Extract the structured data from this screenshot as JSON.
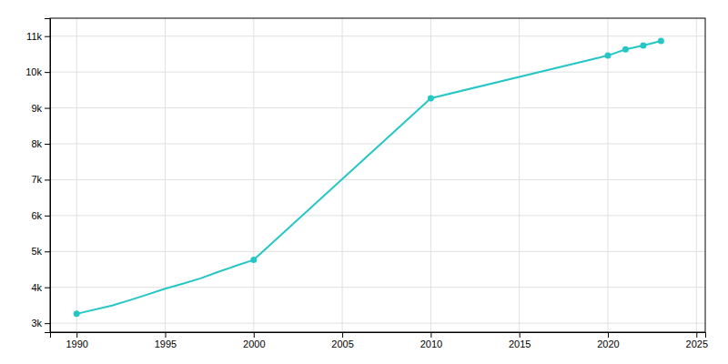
{
  "chart_data": {
    "type": "line",
    "x": [
      1990,
      1992,
      1993,
      1994,
      1995,
      1996,
      1997,
      1998,
      1999,
      2000,
      2010,
      2020,
      2021,
      2022,
      2023
    ],
    "series": [
      {
        "color": "#26c6c6",
        "values": [
          3261,
          3490,
          3640,
          3800,
          3960,
          4100,
          4250,
          4430,
          4600,
          4764,
          9269,
          10458,
          10630,
          10738,
          10868
        ]
      },
      {
        "type": "scatter",
        "marker": "circle",
        "color": "#26c6c6",
        "x": [
          1990,
          2000,
          2010,
          2020,
          2021,
          2022,
          2023
        ],
        "values": [
          3261,
          4764,
          9269,
          10458,
          10630,
          10738,
          10868
        ]
      }
    ],
    "xlim": [
      1988.5,
      2025.5
    ],
    "ylim": [
      2750,
      11500
    ],
    "xticks": [
      1990,
      1995,
      2000,
      2005,
      2010,
      2015,
      2020,
      2025
    ],
    "yticks": [
      {
        "value": 3000,
        "label": "3k"
      },
      {
        "value": 4000,
        "label": "4k"
      },
      {
        "value": 5000,
        "label": "5k"
      },
      {
        "value": 6000,
        "label": "6k"
      },
      {
        "value": 7000,
        "label": "7k"
      },
      {
        "value": 8000,
        "label": "8k"
      },
      {
        "value": 9000,
        "label": "9k"
      },
      {
        "value": 10000,
        "label": "10k"
      },
      {
        "value": 11000,
        "label": "11k"
      }
    ],
    "grid": true
  }
}
